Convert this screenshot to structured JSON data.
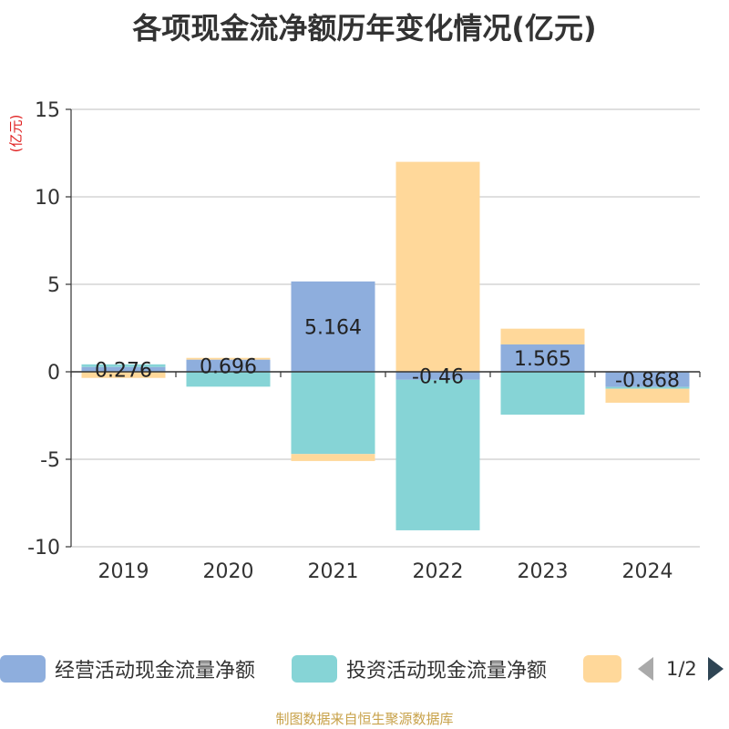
{
  "title": "各项现金流净额历年变化情况(亿元)",
  "unit_label": "(亿元)",
  "source": "制图数据来自恒生聚源数据库",
  "pager": {
    "text": "1/2"
  },
  "colors": {
    "operating": "#8eaedd",
    "investing": "#86d4d6",
    "financing": "#ffd89a",
    "axis": "#333333",
    "grid": "#cccccc"
  },
  "chart_data": {
    "type": "bar",
    "stacked": true,
    "categories": [
      "2019",
      "2020",
      "2021",
      "2022",
      "2023",
      "2024"
    ],
    "ylim": [
      -10,
      15
    ],
    "yticks": [
      15,
      10,
      5,
      0,
      -5,
      -10
    ],
    "grid": true,
    "legend_position": "bottom",
    "series": [
      {
        "name": "经营活动现金流量净额",
        "values": [
          0.276,
          0.696,
          5.164,
          -0.46,
          1.565,
          -0.868
        ],
        "labels": [
          "0.276",
          "0.696",
          "5.164",
          "-0.46",
          "1.565",
          "-0.868"
        ]
      },
      {
        "name": "投资活动现金流量净额",
        "values": [
          0.15,
          -0.85,
          -4.7,
          -8.6,
          -2.45,
          -0.1
        ],
        "labels": []
      },
      {
        "name": "",
        "values": [
          -0.35,
          0.1,
          -0.4,
          12.0,
          0.9,
          -0.8
        ],
        "labels": []
      }
    ]
  }
}
